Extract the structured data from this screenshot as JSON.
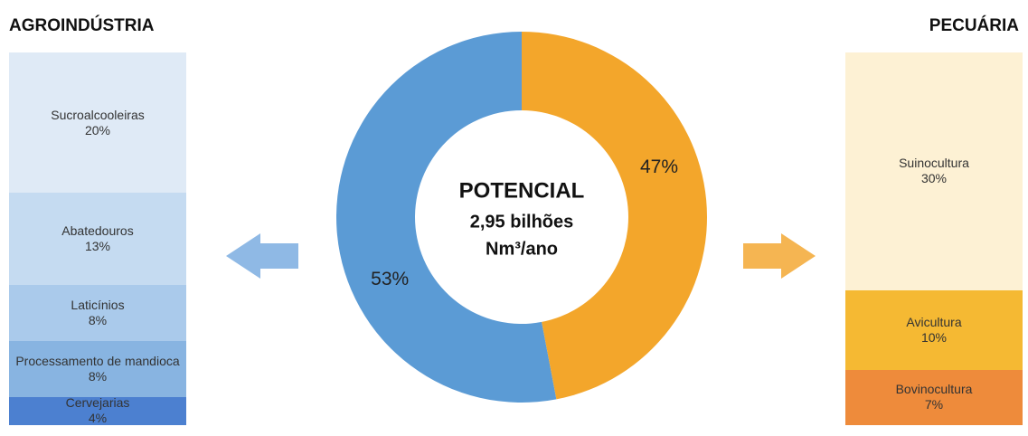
{
  "chart_data": [
    {
      "type": "pie",
      "donut": true,
      "center_text": [
        "POTENCIAL",
        "2,95 bilhões",
        "Nm³/ano"
      ],
      "values": [
        53,
        47
      ],
      "value_labels": [
        "53%",
        "47%"
      ],
      "colors": [
        "#5b9bd5",
        "#f3a62b"
      ]
    },
    {
      "type": "stacked-column",
      "title": "AGROINDÚSTRIA",
      "side": "left",
      "categories": [
        "Sucroalcooleiras",
        "Abatedouros",
        "Laticínios",
        "Processamento de mandioca",
        "Cervejarias"
      ],
      "values": [
        20,
        13,
        8,
        8,
        4
      ],
      "value_labels": [
        "20%",
        "13%",
        "8%",
        "8%",
        "4%"
      ],
      "colors": [
        "#dfeaf6",
        "#c5dbf1",
        "#aacaeb",
        "#88b4e1",
        "#4c80d0"
      ],
      "arrow_color": "#8fb9e5"
    },
    {
      "type": "stacked-column",
      "title": "PECUÁRIA",
      "side": "right",
      "categories": [
        "Suinocultura",
        "Avicultura",
        "Bovinocultura"
      ],
      "values": [
        30,
        10,
        7
      ],
      "value_labels": [
        "30%",
        "10%",
        "7%"
      ],
      "colors": [
        "#fdf1d4",
        "#f5b933",
        "#ee8b3b"
      ],
      "arrow_color": "#f5b552"
    }
  ]
}
